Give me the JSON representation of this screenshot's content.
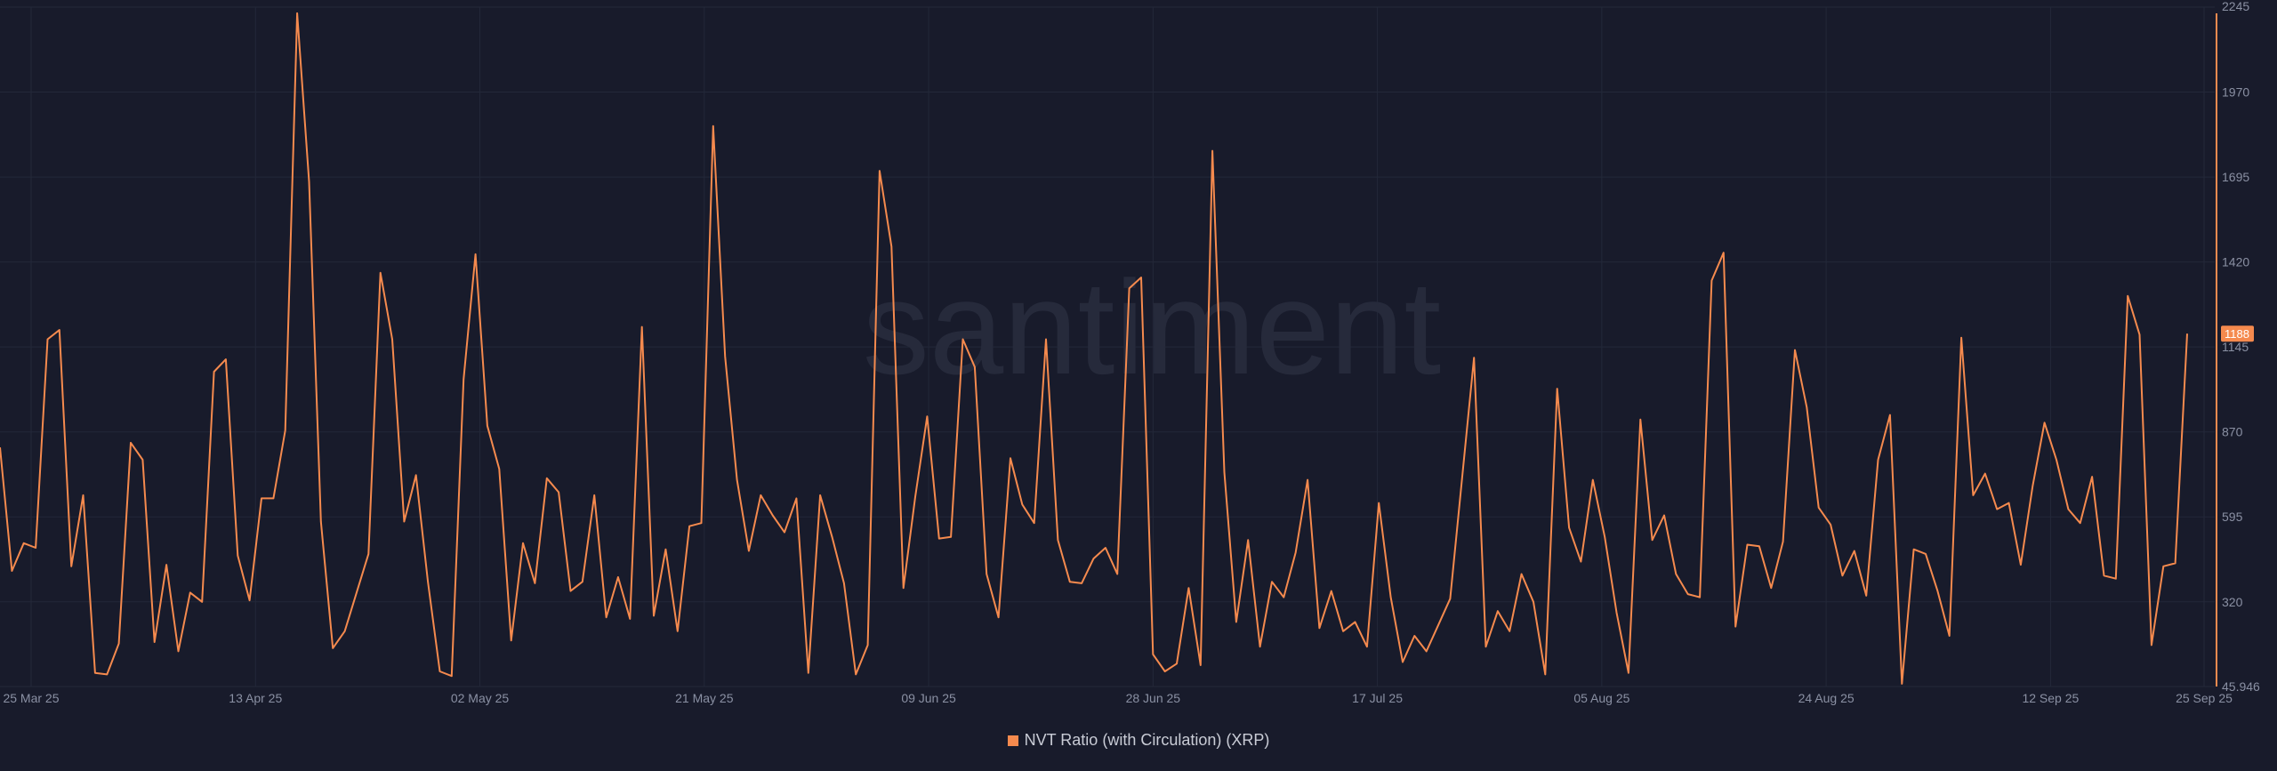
{
  "colors": {
    "background": "#181b2b",
    "series": "#f58a4e",
    "grid": "#232839",
    "badge_text": "#ffffff"
  },
  "watermark": "santiment",
  "chart_data": {
    "type": "line",
    "title": "",
    "xlabel": "",
    "ylabel": "",
    "ylim": [
      45.946,
      2245
    ],
    "yticks": [
      "45.946",
      "320",
      "595",
      "870",
      "1145",
      "1420",
      "1695",
      "1970",
      "2245"
    ],
    "ytick_values": [
      45.946,
      320,
      595,
      870,
      1145,
      1420,
      1695,
      1970,
      2245
    ],
    "xticks": [
      "25 Mar 25",
      "13 Apr 25",
      "02 May 25",
      "21 May 25",
      "09 Jun 25",
      "28 Jun 25",
      "17 Jul 25",
      "05 Aug 25",
      "24 Aug 25",
      "12 Sep 25",
      "25 Sep 25"
    ],
    "xtick_positions": [
      "2025-03-25",
      "2025-04-13",
      "2025-05-02",
      "2025-05-21",
      "2025-06-09",
      "2025-06-28",
      "2025-07-17",
      "2025-08-05",
      "2025-08-24",
      "2025-09-12",
      "2025-09-25"
    ],
    "x_start": "2025-03-25",
    "x_end": "2025-09-25",
    "grid": true,
    "legend_position": "bottom-center",
    "last_value_label": "1188",
    "series": [
      {
        "name": "NVT Ratio (with Circulation) (XRP)",
        "color": "#f58a4e",
        "values": [
          820,
          420,
          510,
          495,
          1170,
          1200,
          435,
          665,
          90,
          85,
          185,
          835,
          780,
          190,
          440,
          160,
          350,
          320,
          1065,
          1105,
          470,
          325,
          655,
          655,
          875,
          2225,
          1680,
          580,
          170,
          225,
          350,
          475,
          1385,
          1170,
          580,
          730,
          385,
          95,
          80,
          1040,
          1445,
          890,
          750,
          195,
          510,
          380,
          720,
          675,
          355,
          385,
          665,
          270,
          400,
          265,
          1210,
          275,
          490,
          225,
          565,
          575,
          1860,
          1115,
          715,
          485,
          665,
          600,
          545,
          655,
          90,
          665,
          530,
          380,
          85,
          180,
          1715,
          1470,
          365,
          660,
          920,
          525,
          530,
          1170,
          1080,
          410,
          270,
          785,
          635,
          575,
          1170,
          520,
          385,
          380,
          460,
          495,
          410,
          1335,
          1370,
          150,
          95,
          120,
          365,
          115,
          1780,
          740,
          255,
          520,
          175,
          385,
          335,
          480,
          715,
          235,
          355,
          225,
          255,
          175,
          640,
          335,
          125,
          210,
          160,
          245,
          330,
          720,
          1110,
          175,
          290,
          225,
          410,
          320,
          85,
          1010,
          560,
          450,
          715,
          530,
          285,
          90,
          910,
          520,
          600,
          410,
          345,
          335,
          1360,
          1450,
          240,
          505,
          500,
          365,
          515,
          1135,
          950,
          625,
          570,
          405,
          485,
          340,
          780,
          925,
          55,
          490,
          475,
          355,
          210,
          1175,
          665,
          735,
          620,
          640,
          440,
          695,
          900,
          780,
          620,
          575,
          725,
          405,
          395,
          1310,
          1185,
          180,
          435,
          445,
          1188
        ]
      }
    ]
  }
}
